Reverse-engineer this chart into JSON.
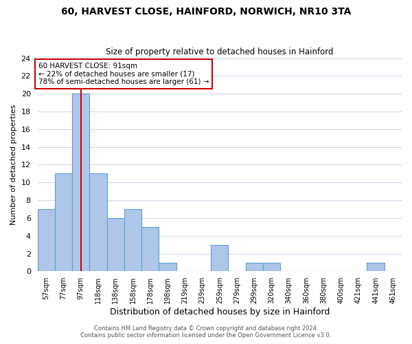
{
  "title": "60, HARVEST CLOSE, HAINFORD, NORWICH, NR10 3TA",
  "subtitle": "Size of property relative to detached houses in Hainford",
  "xlabel": "Distribution of detached houses by size in Hainford",
  "ylabel": "Number of detached properties",
  "bin_labels": [
    "57sqm",
    "77sqm",
    "97sqm",
    "118sqm",
    "138sqm",
    "158sqm",
    "178sqm",
    "198sqm",
    "219sqm",
    "239sqm",
    "259sqm",
    "279sqm",
    "299sqm",
    "320sqm",
    "340sqm",
    "360sqm",
    "380sqm",
    "400sqm",
    "421sqm",
    "441sqm",
    "461sqm"
  ],
  "bar_heights": [
    7,
    11,
    20,
    11,
    6,
    7,
    5,
    1,
    0,
    0,
    3,
    0,
    1,
    1,
    0,
    0,
    0,
    0,
    0,
    1,
    0
  ],
  "bar_color": "#aec6e8",
  "bar_edge_color": "#5a9fd4",
  "property_line_index": 2,
  "property_line_color": "#cc0000",
  "annotation_line1": "60 HARVEST CLOSE: 91sqm",
  "annotation_line2": "← 22% of detached houses are smaller (17)",
  "annotation_line3": "78% of semi-detached houses are larger (61) →",
  "annotation_box_color": "#ffffff",
  "annotation_box_edge_color": "#cc0000",
  "ylim": [
    0,
    24
  ],
  "yticks": [
    0,
    2,
    4,
    6,
    8,
    10,
    12,
    14,
    16,
    18,
    20,
    22,
    24
  ],
  "footer_line1": "Contains HM Land Registry data © Crown copyright and database right 2024.",
  "footer_line2": "Contains public sector information licensed under the Open Government Licence v3.0.",
  "background_color": "#ffffff",
  "grid_color": "#d0d8e8",
  "title_fontsize": 10,
  "subtitle_fontsize": 8.5
}
